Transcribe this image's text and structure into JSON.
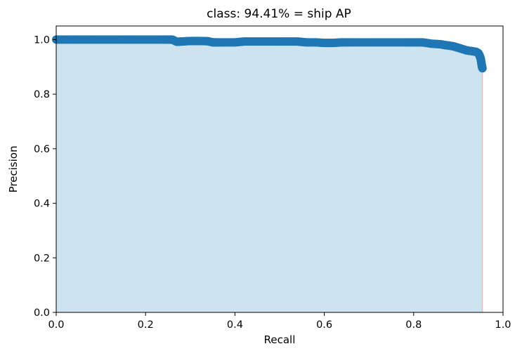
{
  "chart_data": {
    "type": "area",
    "title": "class: 94.41% = ship AP",
    "xlabel": "Recall",
    "ylabel": "Precision",
    "xlim": [
      0.0,
      1.0
    ],
    "ylim": [
      0.0,
      1.05
    ],
    "xticks": [
      "0.0",
      "0.2",
      "0.4",
      "0.6",
      "0.8",
      "1.0"
    ],
    "yticks": [
      "0.0",
      "0.2",
      "0.4",
      "0.6",
      "0.8",
      "1.0"
    ],
    "grid": false,
    "colors": {
      "fill": "#cde3f0",
      "points": "#1f77b4",
      "edge": "#f4a6a6"
    },
    "series": [
      {
        "x": [
          0.0,
          0.03,
          0.06,
          0.09,
          0.12,
          0.15,
          0.18,
          0.21,
          0.24,
          0.26,
          0.27,
          0.28,
          0.3,
          0.32,
          0.34,
          0.35,
          0.36,
          0.38,
          0.4,
          0.42,
          0.45,
          0.48,
          0.51,
          0.54,
          0.56,
          0.58,
          0.6,
          0.62,
          0.64,
          0.66,
          0.69,
          0.72,
          0.75,
          0.78,
          0.8,
          0.82,
          0.84,
          0.86,
          0.87,
          0.88,
          0.89,
          0.9,
          0.91,
          0.92,
          0.93,
          0.94,
          0.945,
          0.948,
          0.95,
          0.951,
          0.952,
          0.953,
          0.954
        ],
        "y": [
          1.0,
          1.0,
          1.0,
          1.0,
          1.0,
          1.0,
          1.0,
          1.0,
          1.0,
          1.0,
          0.992,
          0.993,
          0.995,
          0.995,
          0.994,
          0.99,
          0.99,
          0.99,
          0.99,
          0.993,
          0.993,
          0.993,
          0.993,
          0.993,
          0.99,
          0.99,
          0.988,
          0.988,
          0.99,
          0.99,
          0.99,
          0.99,
          0.99,
          0.99,
          0.99,
          0.99,
          0.985,
          0.983,
          0.98,
          0.978,
          0.975,
          0.97,
          0.965,
          0.96,
          0.958,
          0.955,
          0.95,
          0.94,
          0.93,
          0.92,
          0.91,
          0.9,
          0.895
        ]
      }
    ]
  }
}
